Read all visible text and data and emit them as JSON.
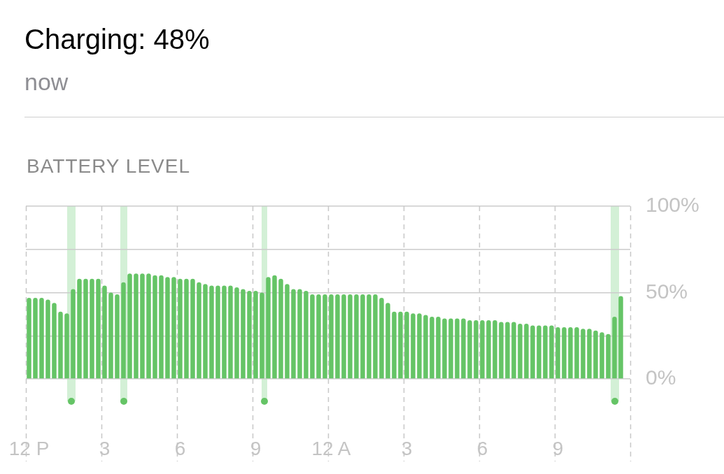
{
  "chart_data": {
    "type": "bar",
    "title": "Charging: 48%",
    "subtitle": "now",
    "annotations": [
      "BATTERY LEVEL"
    ],
    "categories": [
      "12 P",
      null,
      null,
      null,
      null,
      null,
      null,
      null,
      null,
      null,
      null,
      null,
      "3",
      null,
      null,
      null,
      null,
      null,
      null,
      null,
      null,
      null,
      null,
      null,
      "6",
      null,
      null,
      null,
      null,
      null,
      null,
      null,
      null,
      null,
      null,
      null,
      "9",
      null,
      null,
      null,
      null,
      null,
      null,
      null,
      null,
      null,
      null,
      null,
      "12 A",
      null,
      null,
      null,
      null,
      null,
      null,
      null,
      null,
      null,
      null,
      null,
      "3",
      null,
      null,
      null,
      null,
      null,
      null,
      null,
      null,
      null,
      null,
      null,
      "6",
      null,
      null,
      null,
      null,
      null,
      null,
      null,
      null,
      null,
      null,
      null,
      "9",
      null,
      null,
      null,
      null,
      null,
      null,
      null,
      null,
      null,
      null,
      null
    ],
    "values": [
      47,
      47,
      47,
      46,
      44,
      39,
      38,
      52,
      58,
      58,
      58,
      58,
      54,
      50,
      49,
      56,
      61,
      61,
      61,
      61,
      60,
      60,
      59,
      59,
      58,
      58,
      58,
      56,
      55,
      54,
      54,
      54,
      54,
      53,
      52,
      51,
      51,
      50,
      59,
      60,
      58,
      55,
      52,
      52,
      51,
      49,
      49,
      49,
      49,
      49,
      49,
      49,
      49,
      49,
      49,
      49,
      47,
      44,
      39,
      39,
      39,
      38,
      38,
      37,
      36,
      36,
      35,
      35,
      35,
      35,
      34,
      34,
      34,
      34,
      34,
      33,
      33,
      33,
      32,
      32,
      31,
      31,
      31,
      31,
      30,
      30,
      30,
      30,
      29,
      29,
      28,
      27,
      26,
      36,
      48,
      null
    ],
    "color": "#65c466",
    "ylim": [
      0,
      100
    ],
    "yticks": [
      {
        "value": 0,
        "label": "0%"
      },
      {
        "value": 25,
        "label": null
      },
      {
        "value": 50,
        "label": "50%"
      },
      {
        "value": 75,
        "label": null
      },
      {
        "value": 100,
        "label": "100%"
      }
    ],
    "grid": true
  }
}
